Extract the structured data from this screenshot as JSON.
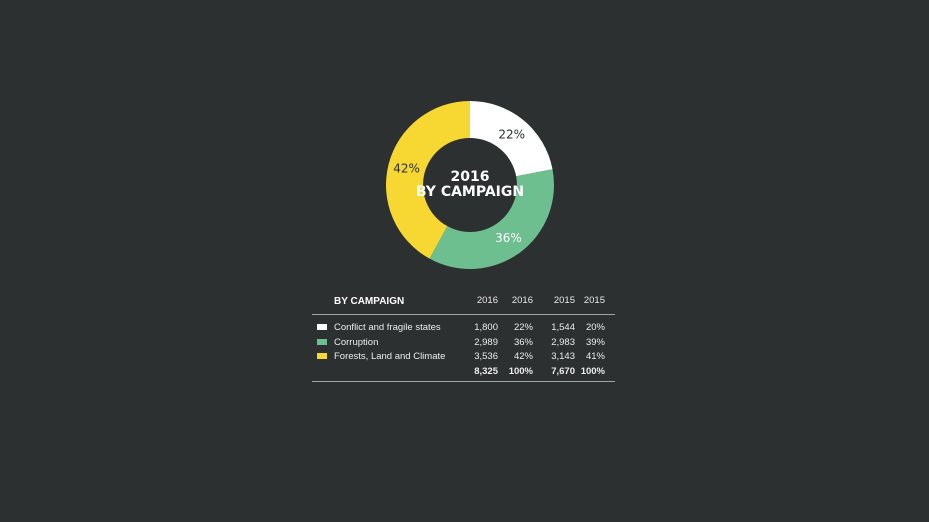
{
  "chart_data": {
    "type": "pie",
    "center_title_line1": "2016",
    "center_title_line2": "BY CAMPAIGN",
    "categories": [
      "Conflict and fragile states",
      "Corruption",
      "Forests, Land and Climate"
    ],
    "values": [
      22,
      36,
      42
    ],
    "labels": [
      "22%",
      "36%",
      "42%"
    ],
    "colors": [
      "#ffffff",
      "#6dbf8f",
      "#f7d832"
    ],
    "label_colors": [
      "#2c3031",
      "#ffffff",
      "#2c3031"
    ]
  },
  "table": {
    "title": "BY CAMPAIGN",
    "headers": [
      "2016",
      "2016",
      "2015",
      "2015"
    ],
    "rows": [
      {
        "label": "Conflict and fragile states",
        "color": "#ffffff",
        "v2016": "1,800",
        "p2016": "22%",
        "v2015": "1,544",
        "p2015": "20%"
      },
      {
        "label": "Corruption",
        "color": "#6dbf8f",
        "v2016": "2,989",
        "p2016": "36%",
        "v2015": "2,983",
        "p2015": "39%"
      },
      {
        "label": "Forests, Land and Climate",
        "color": "#f7d832",
        "v2016": "3,536",
        "p2016": "42%",
        "v2015": "3,143",
        "p2015": "41%"
      }
    ],
    "totals": {
      "v2016": "8,325",
      "p2016": "100%",
      "v2015": "7,670",
      "p2015": "100%"
    }
  }
}
